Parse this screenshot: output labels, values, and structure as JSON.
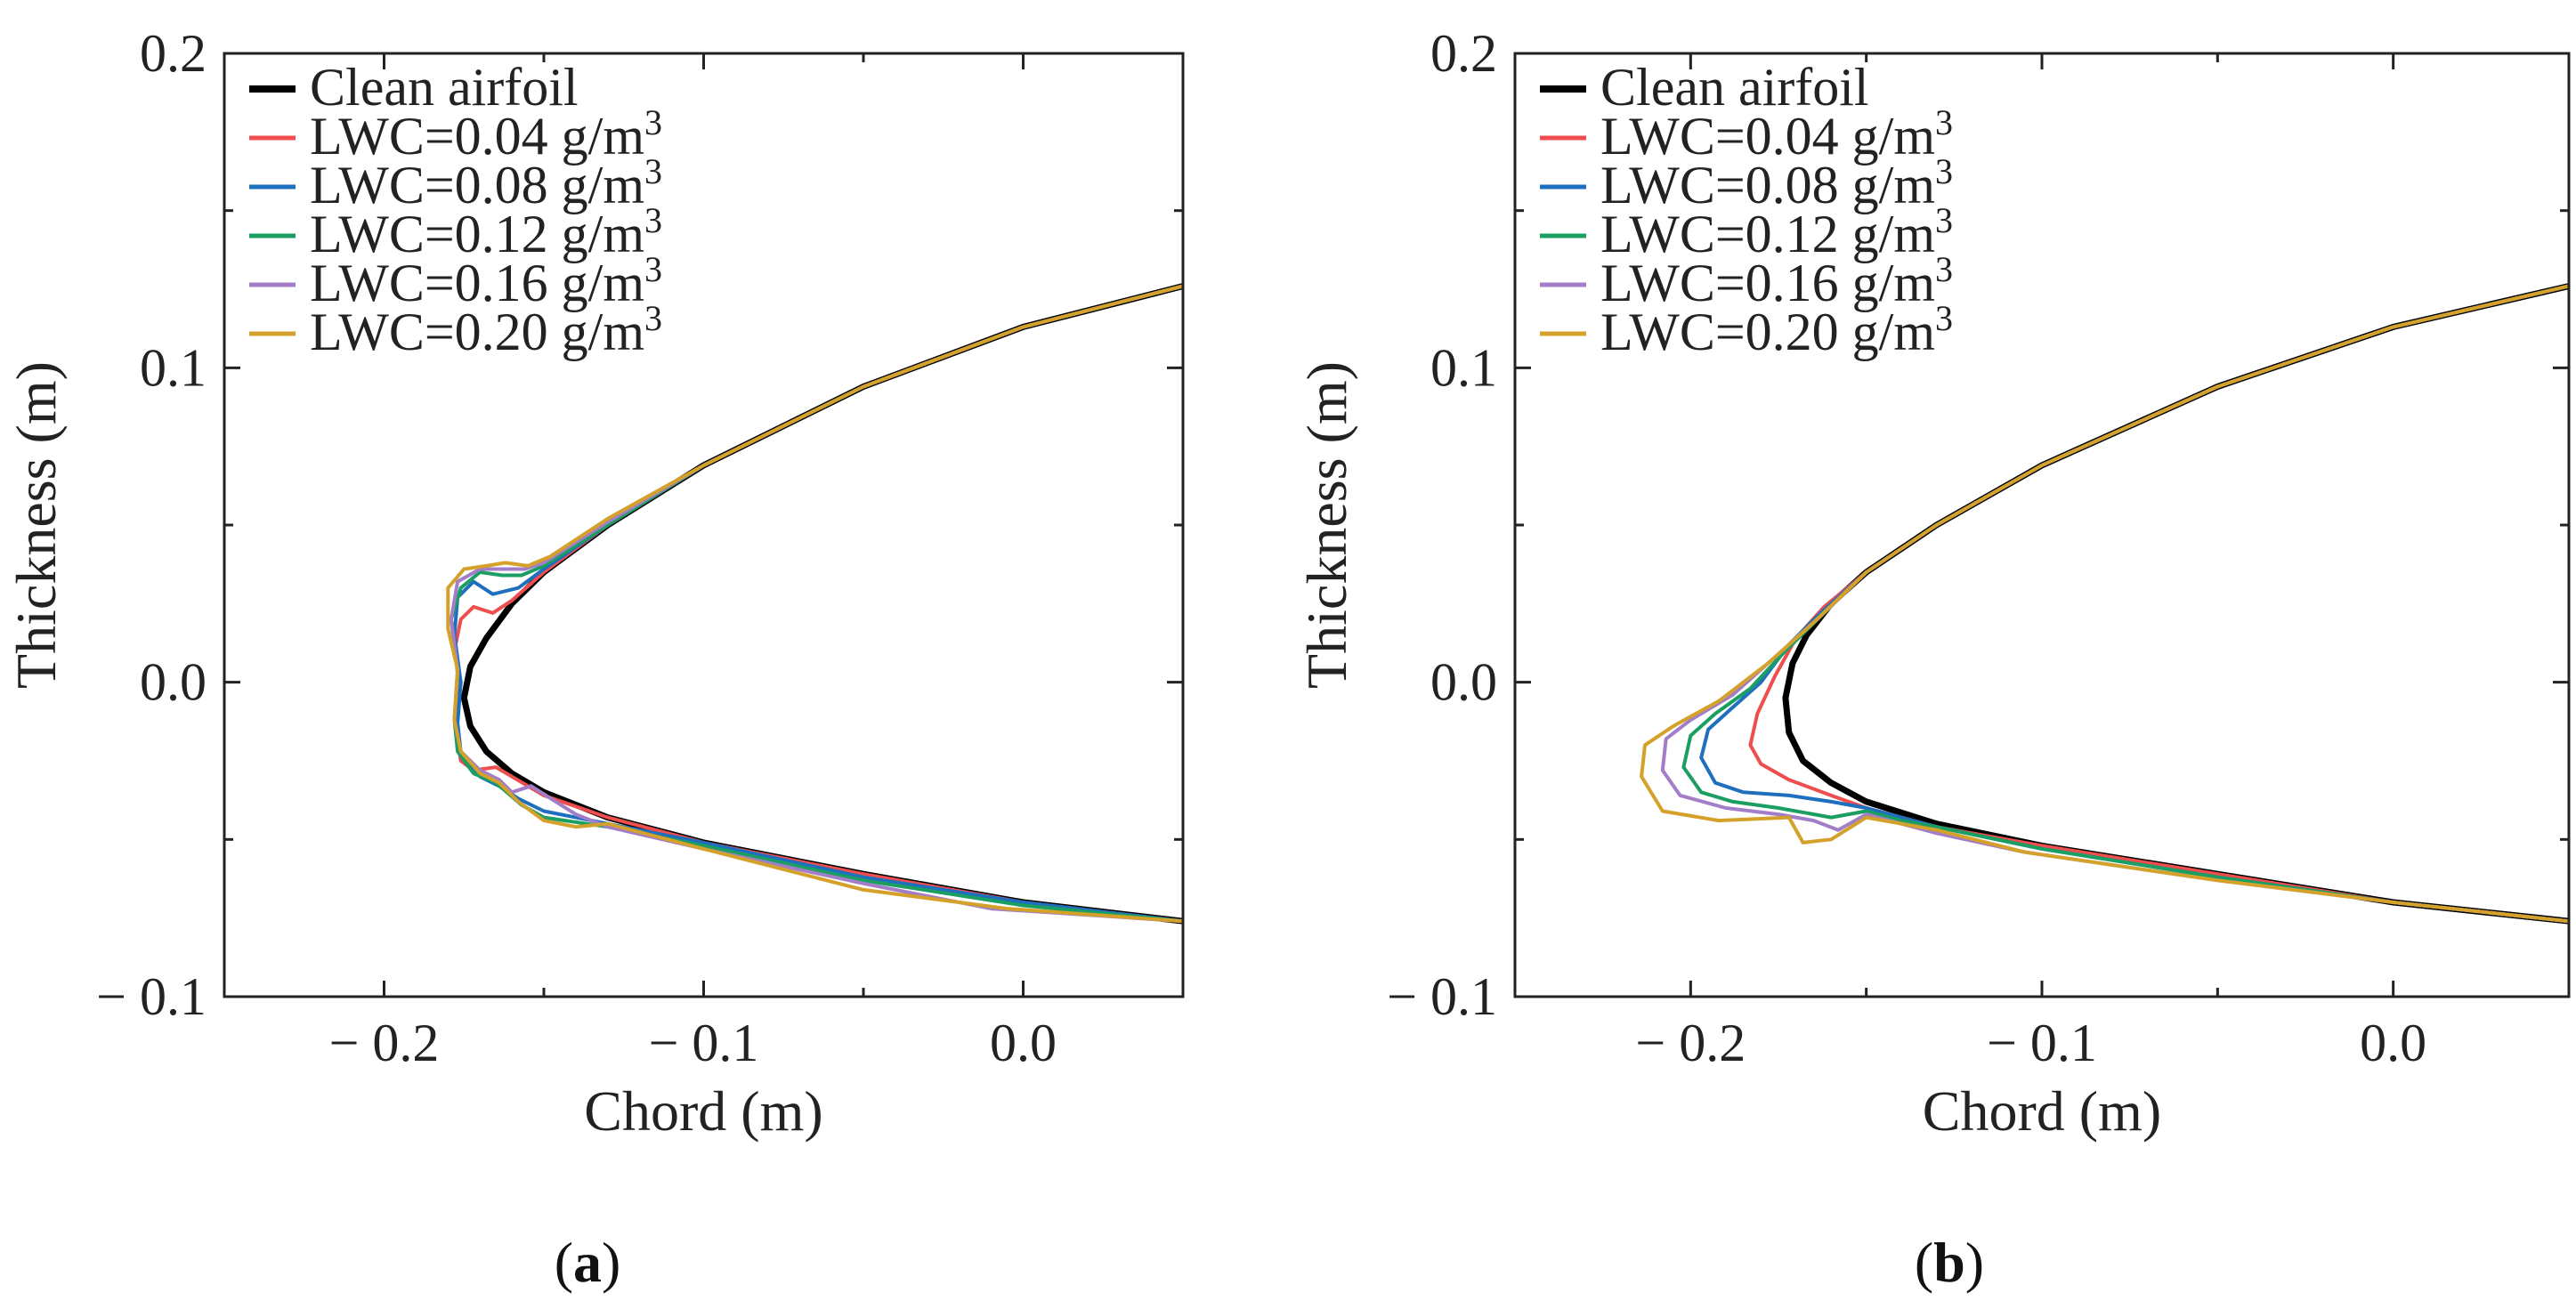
{
  "chart_data": [
    {
      "panel": "a",
      "type": "line",
      "xlabel": "Chord (m)",
      "ylabel": "Thickness (m)",
      "xlim": [
        -0.25,
        0.05
      ],
      "ylim": [
        -0.1,
        0.2
      ],
      "xticks": [
        -0.2,
        -0.1,
        0.0
      ],
      "xtick_labels": [
        "− 0.2",
        "− 0.1",
        "0.0"
      ],
      "yticks": [
        -0.1,
        0.0,
        0.1,
        0.2
      ],
      "ytick_labels": [
        "− 0.1",
        "0.0",
        "0.1",
        "0.2"
      ],
      "legend_position": "top-left",
      "panel_label": {
        "open": "(",
        "letter": "a",
        "close": ")"
      },
      "series": [
        {
          "name": "Clean airfoil",
          "color": "#000000",
          "legend": [
            "Clean airfoil"
          ],
          "x": [
            0.05,
            0.0,
            -0.05,
            -0.1,
            -0.13,
            -0.15,
            -0.16,
            -0.168,
            -0.173,
            -0.175,
            -0.173,
            -0.168,
            -0.16,
            -0.15,
            -0.13,
            -0.1,
            -0.05,
            0.0,
            0.05
          ],
          "y": [
            0.126,
            0.113,
            0.094,
            0.069,
            0.05,
            0.035,
            0.025,
            0.014,
            0.005,
            -0.005,
            -0.014,
            -0.022,
            -0.029,
            -0.035,
            -0.043,
            -0.051,
            -0.061,
            -0.07,
            -0.076
          ]
        },
        {
          "name": "LWC=0.04 g/m³",
          "color": "#ee4e4e",
          "legend": [
            "LWC=0.04 g/m",
            "3"
          ],
          "x": [
            0.05,
            0.0,
            -0.05,
            -0.1,
            -0.13,
            -0.15,
            -0.16,
            -0.166,
            -0.172,
            -0.176,
            -0.178,
            -0.176,
            -0.178,
            -0.176,
            -0.172,
            -0.165,
            -0.16,
            -0.15,
            -0.13,
            -0.1,
            -0.05,
            0.0,
            0.05
          ],
          "y": [
            0.126,
            0.113,
            0.094,
            0.069,
            0.05,
            0.035,
            0.026,
            0.022,
            0.024,
            0.02,
            0.01,
            0.0,
            -0.012,
            -0.025,
            -0.028,
            -0.027,
            -0.03,
            -0.036,
            -0.043,
            -0.051,
            -0.061,
            -0.07,
            -0.076
          ]
        },
        {
          "name": "LWC=0.08 g/m³",
          "color": "#1f6fbf",
          "legend": [
            "LWC=0.08 g/m",
            "3"
          ],
          "x": [
            0.05,
            0.0,
            -0.05,
            -0.1,
            -0.13,
            -0.15,
            -0.158,
            -0.166,
            -0.172,
            -0.177,
            -0.178,
            -0.176,
            -0.177,
            -0.176,
            -0.17,
            -0.164,
            -0.158,
            -0.15,
            -0.13,
            -0.1,
            -0.05,
            0.0,
            0.05
          ],
          "y": [
            0.126,
            0.113,
            0.094,
            0.069,
            0.05,
            0.036,
            0.03,
            0.028,
            0.032,
            0.027,
            0.015,
            0.0,
            -0.013,
            -0.022,
            -0.03,
            -0.033,
            -0.037,
            -0.041,
            -0.045,
            -0.051,
            -0.062,
            -0.07,
            -0.076
          ]
        },
        {
          "name": "LWC=0.12 g/m³",
          "color": "#1a9e62",
          "legend": [
            "LWC=0.12 g/m",
            "3"
          ],
          "x": [
            0.05,
            0.0,
            -0.05,
            -0.1,
            -0.13,
            -0.15,
            -0.157,
            -0.163,
            -0.17,
            -0.176,
            -0.179,
            -0.177,
            -0.178,
            -0.177,
            -0.172,
            -0.165,
            -0.157,
            -0.15,
            -0.13,
            -0.1,
            -0.05,
            0.0,
            0.05
          ],
          "y": [
            0.126,
            0.113,
            0.094,
            0.069,
            0.05,
            0.037,
            0.034,
            0.034,
            0.035,
            0.03,
            0.02,
            0.003,
            -0.012,
            -0.022,
            -0.029,
            -0.032,
            -0.039,
            -0.043,
            -0.046,
            -0.052,
            -0.063,
            -0.071,
            -0.076
          ]
        },
        {
          "name": "LWC=0.16 g/m³",
          "color": "#a27dc8",
          "legend": [
            "LWC=0.16 g/m",
            "3"
          ],
          "x": [
            0.05,
            0.0,
            -0.05,
            -0.1,
            -0.13,
            -0.15,
            -0.156,
            -0.163,
            -0.17,
            -0.177,
            -0.179,
            -0.177,
            -0.178,
            -0.176,
            -0.17,
            -0.164,
            -0.16,
            -0.154,
            -0.14,
            -0.13,
            -0.1,
            -0.05,
            -0.01,
            0.05
          ],
          "y": [
            0.126,
            0.113,
            0.094,
            0.069,
            0.051,
            0.038,
            0.036,
            0.036,
            0.036,
            0.032,
            0.02,
            0.004,
            -0.012,
            -0.022,
            -0.028,
            -0.031,
            -0.035,
            -0.033,
            -0.042,
            -0.046,
            -0.053,
            -0.064,
            -0.072,
            -0.076
          ]
        },
        {
          "name": "LWC=0.20 g/m³",
          "color": "#d4a12a",
          "legend": [
            "LWC=0.20 g/m",
            "3"
          ],
          "x": [
            0.05,
            0.0,
            -0.05,
            -0.1,
            -0.13,
            -0.148,
            -0.155,
            -0.162,
            -0.168,
            -0.175,
            -0.18,
            -0.18,
            -0.177,
            -0.178,
            -0.176,
            -0.17,
            -0.164,
            -0.158,
            -0.15,
            -0.14,
            -0.13,
            -0.1,
            -0.05,
            -0.005,
            0.05
          ],
          "y": [
            0.126,
            0.113,
            0.094,
            0.069,
            0.052,
            0.04,
            0.037,
            0.038,
            0.037,
            0.036,
            0.03,
            0.017,
            0.004,
            -0.012,
            -0.022,
            -0.029,
            -0.032,
            -0.038,
            -0.044,
            -0.046,
            -0.045,
            -0.053,
            -0.066,
            -0.072,
            -0.076
          ]
        }
      ]
    },
    {
      "panel": "b",
      "type": "line",
      "xlabel": "Chord (m)",
      "ylabel": "Thickness (m)",
      "xlim": [
        -0.25,
        0.05
      ],
      "ylim": [
        -0.1,
        0.2
      ],
      "xticks": [
        -0.2,
        -0.1,
        0.0
      ],
      "xtick_labels": [
        "− 0.2",
        "− 0.1",
        "0.0"
      ],
      "yticks": [
        -0.1,
        0.0,
        0.1,
        0.2
      ],
      "ytick_labels": [
        "− 0.1",
        "0.0",
        "0.1",
        "0.2"
      ],
      "legend_position": "top-left",
      "panel_label": {
        "open": "(",
        "letter": "b",
        "close": ")"
      },
      "series": [
        {
          "name": "Clean airfoil",
          "color": "#000000",
          "legend": [
            "Clean airfoil"
          ],
          "x": [
            0.05,
            0.0,
            -0.05,
            -0.1,
            -0.13,
            -0.15,
            -0.16,
            -0.167,
            -0.171,
            -0.173,
            -0.172,
            -0.168,
            -0.16,
            -0.15,
            -0.13,
            -0.1,
            -0.05,
            0.0,
            0.05
          ],
          "y": [
            0.126,
            0.113,
            0.094,
            0.069,
            0.05,
            0.035,
            0.025,
            0.015,
            0.006,
            -0.005,
            -0.016,
            -0.025,
            -0.032,
            -0.038,
            -0.045,
            -0.052,
            -0.061,
            -0.07,
            -0.076
          ]
        },
        {
          "name": "LWC=0.04 g/m³",
          "color": "#ee4e4e",
          "legend": [
            "LWC=0.04 g/m",
            "3"
          ],
          "x": [
            0.05,
            0.0,
            -0.05,
            -0.1,
            -0.13,
            -0.15,
            -0.162,
            -0.17,
            -0.176,
            -0.181,
            -0.183,
            -0.18,
            -0.172,
            -0.16,
            -0.15,
            -0.13,
            -0.1,
            -0.05,
            0.0,
            0.05
          ],
          "y": [
            0.126,
            0.113,
            0.094,
            0.069,
            0.05,
            0.035,
            0.024,
            0.014,
            0.002,
            -0.01,
            -0.02,
            -0.026,
            -0.031,
            -0.036,
            -0.04,
            -0.046,
            -0.052,
            -0.061,
            -0.07,
            -0.076
          ]
        },
        {
          "name": "LWC=0.08 g/m³",
          "color": "#1f6fbf",
          "legend": [
            "LWC=0.08 g/m",
            "3"
          ],
          "x": [
            0.05,
            0.0,
            -0.05,
            -0.1,
            -0.13,
            -0.15,
            -0.163,
            -0.172,
            -0.18,
            -0.188,
            -0.195,
            -0.197,
            -0.193,
            -0.185,
            -0.172,
            -0.16,
            -0.15,
            -0.13,
            -0.1,
            -0.05,
            0.0,
            0.05
          ],
          "y": [
            0.126,
            0.113,
            0.094,
            0.069,
            0.05,
            0.035,
            0.022,
            0.012,
            0.0,
            -0.008,
            -0.015,
            -0.024,
            -0.032,
            -0.035,
            -0.036,
            -0.038,
            -0.04,
            -0.046,
            -0.053,
            -0.062,
            -0.07,
            -0.076
          ]
        },
        {
          "name": "LWC=0.12 g/m³",
          "color": "#1a9e62",
          "legend": [
            "LWC=0.12 g/m",
            "3"
          ],
          "x": [
            0.05,
            0.0,
            -0.05,
            -0.1,
            -0.13,
            -0.15,
            -0.163,
            -0.173,
            -0.183,
            -0.193,
            -0.2,
            -0.202,
            -0.197,
            -0.188,
            -0.175,
            -0.16,
            -0.15,
            -0.14,
            -0.13,
            -0.1,
            -0.05,
            0.0,
            0.05
          ],
          "y": [
            0.126,
            0.113,
            0.094,
            0.069,
            0.05,
            0.035,
            0.021,
            0.01,
            -0.002,
            -0.01,
            -0.017,
            -0.027,
            -0.035,
            -0.038,
            -0.04,
            -0.043,
            -0.041,
            -0.044,
            -0.046,
            -0.053,
            -0.062,
            -0.07,
            -0.076
          ]
        },
        {
          "name": "LWC=0.16 g/m³",
          "color": "#a27dc8",
          "legend": [
            "LWC=0.16 g/m",
            "3"
          ],
          "x": [
            0.05,
            0.0,
            -0.05,
            -0.1,
            -0.13,
            -0.15,
            -0.164,
            -0.176,
            -0.188,
            -0.2,
            -0.207,
            -0.208,
            -0.203,
            -0.19,
            -0.175,
            -0.165,
            -0.158,
            -0.15,
            -0.13,
            -0.105,
            -0.05,
            0.0,
            0.05
          ],
          "y": [
            0.126,
            0.113,
            0.094,
            0.069,
            0.05,
            0.035,
            0.02,
            0.008,
            -0.004,
            -0.012,
            -0.018,
            -0.028,
            -0.036,
            -0.04,
            -0.042,
            -0.044,
            -0.047,
            -0.042,
            -0.048,
            -0.054,
            -0.063,
            -0.07,
            -0.076
          ]
        },
        {
          "name": "LWC=0.20 g/m³",
          "color": "#d4a12a",
          "legend": [
            "LWC=0.20 g/m",
            "3"
          ],
          "x": [
            0.05,
            0.0,
            -0.05,
            -0.1,
            -0.13,
            -0.15,
            -0.165,
            -0.178,
            -0.192,
            -0.205,
            -0.213,
            -0.214,
            -0.208,
            -0.192,
            -0.172,
            -0.168,
            -0.16,
            -0.15,
            -0.13,
            -0.105,
            -0.05,
            0.0,
            0.05
          ],
          "y": [
            0.126,
            0.113,
            0.094,
            0.069,
            0.05,
            0.035,
            0.019,
            0.006,
            -0.006,
            -0.014,
            -0.02,
            -0.03,
            -0.041,
            -0.044,
            -0.043,
            -0.051,
            -0.05,
            -0.043,
            -0.047,
            -0.054,
            -0.063,
            -0.07,
            -0.076
          ]
        }
      ]
    }
  ]
}
